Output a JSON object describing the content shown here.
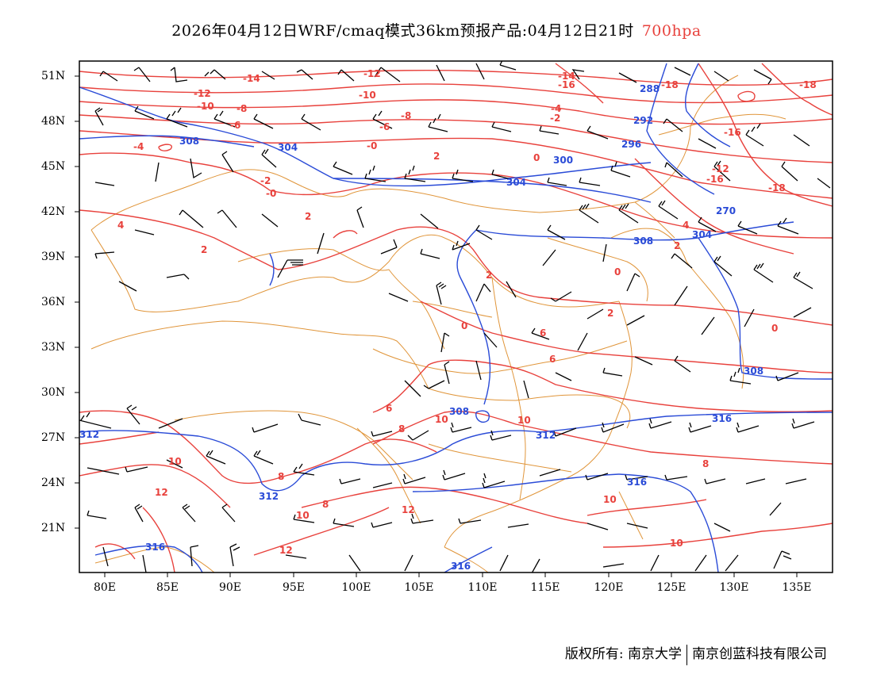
{
  "title": {
    "main": "2026年04月12日WRF/cmaq模式36km预报产品:04月12日21时",
    "level": "700hpa"
  },
  "axes": {
    "lat_labels": [
      "51N",
      "48N",
      "45N",
      "42N",
      "39N",
      "36N",
      "33N",
      "30N",
      "27N",
      "24N",
      "21N"
    ],
    "lon_labels": [
      "80E",
      "85E",
      "90E",
      "95E",
      "100E",
      "105E",
      "110E",
      "115E",
      "120E",
      "125E",
      "130E",
      "135E"
    ]
  },
  "contours": {
    "height_color": "#2a4bd7",
    "temperature_color": "#e8413c",
    "border_color": "#e0953a",
    "height_labels": [
      "308",
      "304",
      "300",
      "304",
      "296",
      "292",
      "288",
      "304",
      "308",
      "270",
      "308",
      "316",
      "312",
      "308",
      "312",
      "312",
      "316",
      "316",
      "316"
    ],
    "temperature_labels": [
      "-14",
      "-12",
      "-10",
      "-8",
      "-6",
      "-4",
      "-12",
      "-10",
      "-8",
      "-6",
      "-4",
      "-2",
      "-0",
      "-14",
      "-16",
      "-18",
      "-12",
      "-18",
      "-16",
      "-16",
      "-18",
      "2",
      "0",
      "-2",
      "-0",
      "4",
      "2",
      "2",
      "0",
      "2",
      "4",
      "2",
      "0",
      "2",
      "0",
      "6",
      "6",
      "8",
      "10",
      "10",
      "12",
      "10",
      "8",
      "10",
      "12",
      "6",
      "8",
      "10",
      "12",
      "8",
      "10"
    ]
  },
  "footer": {
    "left": "版权所有: 南京大学",
    "right": "南京创蓝科技有限公司"
  }
}
